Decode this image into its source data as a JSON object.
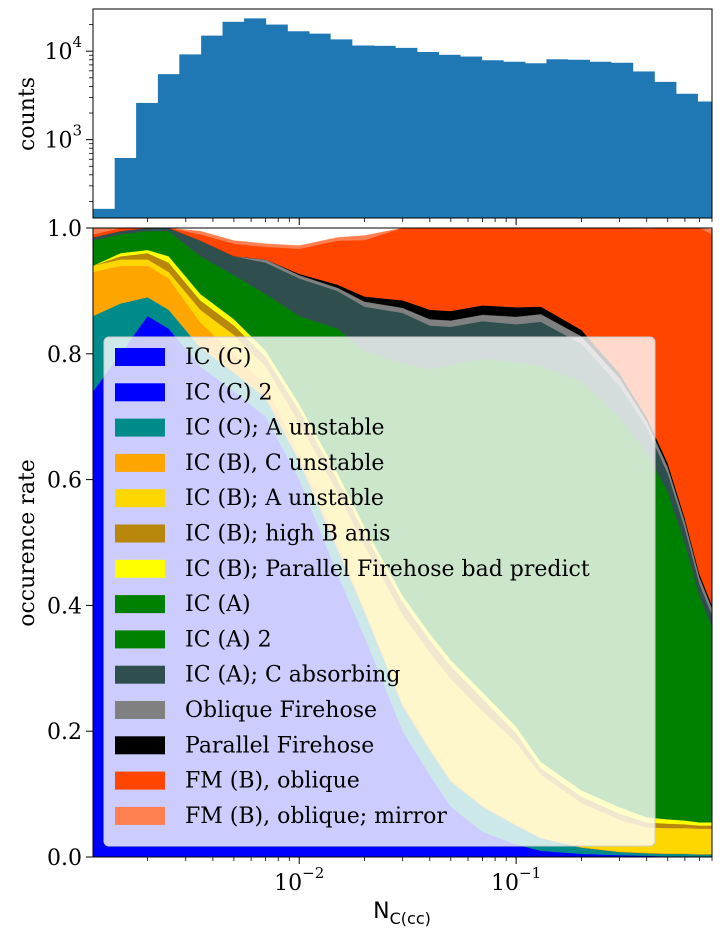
{
  "chart_data": [
    {
      "type": "bar",
      "panel": "histogram",
      "ylabel": "counts",
      "yscale": "log",
      "xscale": "log",
      "ylim": [
        130,
        30000
      ],
      "xlim": [
        0.00112,
        0.8
      ],
      "y_tick_labels": [
        {
          "value": 1000,
          "base": "10",
          "exp": "3"
        },
        {
          "value": 10000,
          "base": "10",
          "exp": "4"
        }
      ],
      "color": "#1f77b4",
      "bins": [
        0.00112,
        0.00141,
        0.00177,
        0.00223,
        0.0028,
        0.00353,
        0.00443,
        0.00557,
        0.00701,
        0.00882,
        0.0111,
        0.0139,
        0.0175,
        0.0221,
        0.0277,
        0.0349,
        0.0439,
        0.0552,
        0.0694,
        0.0872,
        0.11,
        0.138,
        0.173,
        0.218,
        0.274,
        0.345,
        0.434,
        0.546,
        0.686,
        0.8
      ],
      "counts": [
        165,
        620,
        2600,
        5500,
        9200,
        15000,
        21500,
        23500,
        20000,
        16800,
        15800,
        13600,
        11600,
        11500,
        10900,
        9800,
        9100,
        8700,
        7900,
        7600,
        7300,
        8100,
        8000,
        7600,
        7400,
        5900,
        4500,
        3300,
        2700
      ]
    },
    {
      "type": "area",
      "panel": "occurrence",
      "stacked": true,
      "xscale": "log",
      "xlabel": "N",
      "xlabel_sub": "C(cc)",
      "ylabel": "occurence rate",
      "xlim": [
        0.00112,
        0.8
      ],
      "ylim": [
        0,
        1
      ],
      "x_tick_labels": [
        {
          "value": 0.01,
          "base": "10",
          "exp": "−2"
        },
        {
          "value": 0.1,
          "base": "10",
          "exp": "−1"
        }
      ],
      "y_tick_labels": [
        "0.0",
        "0.2",
        "0.4",
        "0.6",
        "0.8",
        "1.0"
      ],
      "legend_position": "lower-left",
      "x": [
        0.00112,
        0.0015,
        0.002,
        0.0025,
        0.0035,
        0.005,
        0.007,
        0.01,
        0.015,
        0.02,
        0.03,
        0.04,
        0.05,
        0.07,
        0.1,
        0.13,
        0.2,
        0.3,
        0.4,
        0.5,
        0.6,
        0.7,
        0.8
      ],
      "series": [
        {
          "name": "IC (C)",
          "color": "#0000ff",
          "values": [
            0.74,
            0.8,
            0.86,
            0.84,
            0.78,
            0.74,
            0.7,
            0.6,
            0.45,
            0.35,
            0.2,
            0.13,
            0.08,
            0.04,
            0.02,
            0.01,
            0.005,
            0.003,
            0.002,
            0.001,
            0.001,
            0.001,
            0.001
          ]
        },
        {
          "name": "IC (C) 2",
          "color": "#0000ff",
          "values": [
            0.0,
            0.0,
            0.0,
            0.0,
            0.0,
            0.0,
            0.0,
            0.0,
            0.0,
            0.0,
            0.0,
            0.0,
            0.0,
            0.0,
            0.0,
            0.0,
            0.0,
            0.0,
            0.0,
            0.0,
            0.0,
            0.0,
            0.0
          ]
        },
        {
          "name": "IC (C); A unstable",
          "color": "#008b8b",
          "values": [
            0.12,
            0.08,
            0.03,
            0.03,
            0.03,
            0.03,
            0.03,
            0.03,
            0.04,
            0.04,
            0.04,
            0.04,
            0.04,
            0.04,
            0.03,
            0.02,
            0.01,
            0.005,
            0.004,
            0.004,
            0.004,
            0.003,
            0.003
          ]
        },
        {
          "name": "IC (B), C unstable",
          "color": "#ffa500",
          "values": [
            0.07,
            0.06,
            0.05,
            0.05,
            0.04,
            0.03,
            0.02,
            0.01,
            0.01,
            0.005,
            0.005,
            0.005,
            0.003,
            0.002,
            0.002,
            0.001,
            0.001,
            0.001,
            0.001,
            0.001,
            0.001,
            0.001,
            0.001
          ]
        },
        {
          "name": "IC (B); A unstable",
          "color": "#ffd700",
          "values": [
            0.01,
            0.01,
            0.01,
            0.01,
            0.02,
            0.03,
            0.03,
            0.05,
            0.08,
            0.1,
            0.14,
            0.15,
            0.16,
            0.15,
            0.13,
            0.1,
            0.07,
            0.05,
            0.04,
            0.04,
            0.04,
            0.04,
            0.04
          ]
        },
        {
          "name": "IC (B); high B anis",
          "color": "#b8860b",
          "values": [
            0.0,
            0.005,
            0.01,
            0.015,
            0.015,
            0.015,
            0.015,
            0.02,
            0.02,
            0.02,
            0.02,
            0.02,
            0.02,
            0.02,
            0.015,
            0.01,
            0.01,
            0.01,
            0.008,
            0.007,
            0.006,
            0.005,
            0.005
          ]
        },
        {
          "name": "IC (B); Parallel Firehose bad predict",
          "color": "#ffff00",
          "values": [
            0.0,
            0.005,
            0.005,
            0.01,
            0.01,
            0.01,
            0.01,
            0.01,
            0.01,
            0.01,
            0.01,
            0.01,
            0.01,
            0.01,
            0.01,
            0.01,
            0.01,
            0.01,
            0.008,
            0.007,
            0.006,
            0.005,
            0.005
          ]
        },
        {
          "name": "IC (A)",
          "color": "#008000",
          "values": [
            0.04,
            0.03,
            0.03,
            0.04,
            0.06,
            0.07,
            0.09,
            0.14,
            0.23,
            0.28,
            0.37,
            0.42,
            0.47,
            0.53,
            0.58,
            0.63,
            0.65,
            0.62,
            0.58,
            0.52,
            0.44,
            0.36,
            0.31
          ]
        },
        {
          "name": "IC (A) 2",
          "color": "#008000",
          "values": [
            0.0,
            0.0,
            0.0,
            0.0,
            0.0,
            0.0,
            0.0,
            0.0,
            0.0,
            0.0,
            0.0,
            0.0,
            0.0,
            0.0,
            0.0,
            0.0,
            0.0,
            0.0,
            0.0,
            0.0,
            0.0,
            0.0,
            0.0
          ]
        },
        {
          "name": "IC (A); C absorbing",
          "color": "#2f4f4f",
          "values": [
            0.005,
            0.005,
            0.01,
            0.01,
            0.025,
            0.03,
            0.05,
            0.06,
            0.06,
            0.07,
            0.08,
            0.07,
            0.06,
            0.06,
            0.06,
            0.07,
            0.06,
            0.05,
            0.04,
            0.03,
            0.025,
            0.02,
            0.02
          ]
        },
        {
          "name": "Oblique Firehose",
          "color": "#808080",
          "values": [
            0.0,
            0.0,
            0.0,
            0.0,
            0.0,
            0.0,
            0.005,
            0.005,
            0.005,
            0.008,
            0.008,
            0.01,
            0.01,
            0.01,
            0.012,
            0.012,
            0.012,
            0.012,
            0.01,
            0.01,
            0.01,
            0.01,
            0.01
          ]
        },
        {
          "name": "Parallel Firehose",
          "color": "#000000",
          "values": [
            0.0,
            0.0,
            0.0,
            0.0,
            0.0,
            0.0,
            0.0,
            0.002,
            0.005,
            0.008,
            0.012,
            0.015,
            0.015,
            0.015,
            0.015,
            0.012,
            0.01,
            0.008,
            0.006,
            0.006,
            0.005,
            0.005,
            0.005
          ]
        },
        {
          "name": "FM (B), oblique",
          "color": "#ff4500",
          "values": [
            0.005,
            0.005,
            0.005,
            0.006,
            0.01,
            0.02,
            0.02,
            0.04,
            0.07,
            0.09,
            0.13,
            0.14,
            0.16,
            0.15,
            0.14,
            0.14,
            0.17,
            0.25,
            0.3,
            0.39,
            0.48,
            0.55,
            0.59
          ]
        },
        {
          "name": "FM (B), oblique; mirror",
          "color": "#ff7f50",
          "values": [
            0.01,
            0.01,
            0.005,
            0.004,
            0.005,
            0.005,
            0.005,
            0.005,
            0.005,
            0.007,
            0.007,
            0.007,
            0.007,
            0.007,
            0.008,
            0.009,
            0.009,
            0.009,
            0.009,
            0.009,
            0.008,
            0.008,
            0.008
          ]
        }
      ]
    }
  ]
}
